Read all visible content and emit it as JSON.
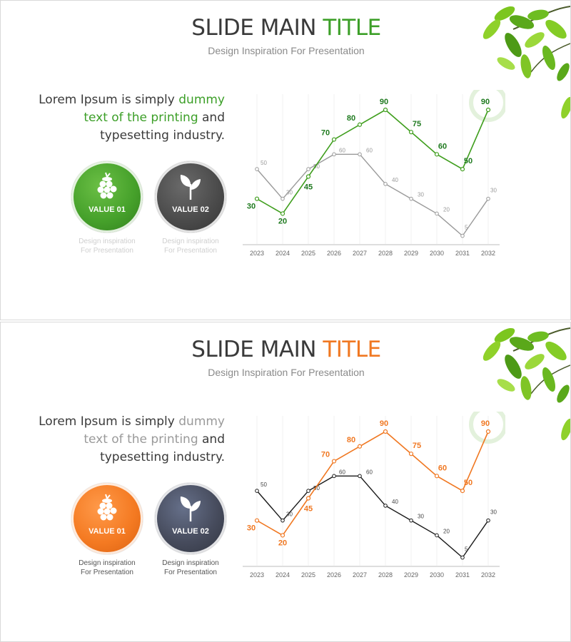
{
  "slides": [
    {
      "title_main": "SLIDE MAIN",
      "title_accent": "TITLE",
      "subtitle": "Design Inspiration For Presentation",
      "lead": {
        "part1": "Lorem Ipsum is simply ",
        "accent1": "dummy",
        "accent2": "text of the printing",
        "part2": " and",
        "part3": "typesetting industry."
      },
      "values": [
        {
          "label": "VALUE 01",
          "caption1": "Design inspiration",
          "caption2": "For Presentation",
          "icon": "berry-icon"
        },
        {
          "label": "VALUE 02",
          "caption1": "Design inspiration",
          "caption2": "For Presentation",
          "icon": "sprout-icon"
        }
      ],
      "colors": {
        "accent": "#3f9e1d",
        "label_accent": "#1f7a1f",
        "title_accent": "#3c9f28",
        "lead_accent": "#3c9f28",
        "circle1": "#46a12b",
        "circle2": "#4b4b4b",
        "secondary_line": "#9a9a9a",
        "secondary_label": "#9a9a9a"
      }
    },
    {
      "title_main": "SLIDE MAIN",
      "title_accent": "TITLE",
      "subtitle": "Design Inspiration For Presentation",
      "lead": {
        "part1": "Lorem Ipsum is simply ",
        "accent1": "dummy",
        "accent2": "text of the printing",
        "part2": " and",
        "part3": "typesetting industry."
      },
      "values": [
        {
          "label": "VALUE 01",
          "caption1": "Design inspiration",
          "caption2": "For Presentation",
          "icon": "berry-icon"
        },
        {
          "label": "VALUE 02",
          "caption1": "Design inspiration",
          "caption2": "For Presentation",
          "icon": "sprout-icon"
        }
      ],
      "colors": {
        "accent": "#f07822",
        "label_accent": "#f07822",
        "title_accent": "#f07822",
        "lead_accent": "#9a9a9a",
        "circle1": "#f47a22",
        "circle2": "#464b5c",
        "secondary_line": "#1a1a1a",
        "secondary_label": "#444444"
      }
    }
  ],
  "chart_data": [
    {
      "type": "line",
      "categories": [
        "2023",
        "2024",
        "2025",
        "2026",
        "2027",
        "2028",
        "2029",
        "2030",
        "2031",
        "2032"
      ],
      "series": [
        {
          "values": [
            30,
            20,
            45,
            70,
            80,
            90,
            75,
            60,
            50,
            90
          ]
        },
        {
          "values": [
            50,
            30,
            50,
            60,
            60,
            40,
            30,
            20,
            5,
            30
          ]
        }
      ],
      "highlight_index": 9,
      "grid": "vertical"
    },
    {
      "type": "line",
      "categories": [
        "2023",
        "2024",
        "2025",
        "2026",
        "2027",
        "2028",
        "2029",
        "2030",
        "2031",
        "2032"
      ],
      "series": [
        {
          "values": [
            30,
            20,
            45,
            70,
            80,
            90,
            75,
            60,
            50,
            90
          ]
        },
        {
          "values": [
            50,
            30,
            50,
            60,
            60,
            40,
            30,
            20,
            5,
            30
          ]
        }
      ],
      "highlight_index": 9,
      "grid": "vertical"
    }
  ]
}
